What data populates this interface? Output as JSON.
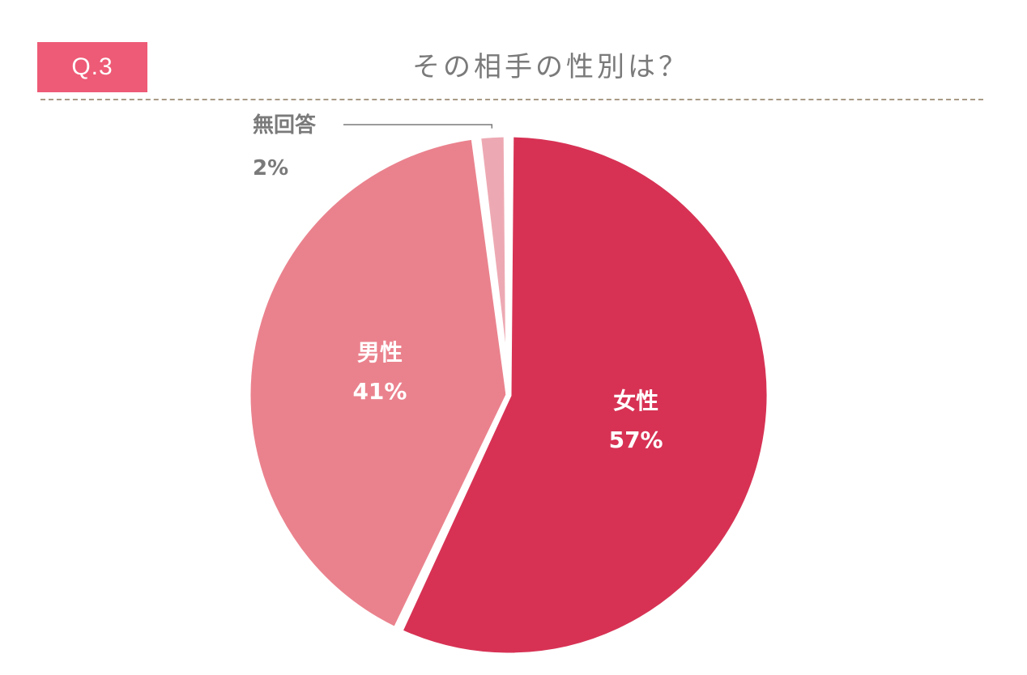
{
  "header": {
    "badge": "Q.3",
    "title": "その相手の性別は？"
  },
  "colors": {
    "badge_bg": "#ee5b76",
    "female": "#d73254",
    "male": "#ea828d",
    "no_answer": "#eda9b3",
    "title_text": "#7a7a7a",
    "divider": "#a99a86"
  },
  "chart_data": {
    "type": "pie",
    "start_angle_deg": 0,
    "direction": "clockwise",
    "slices": [
      {
        "label": "女性",
        "value": 57,
        "display": "57%",
        "color": "#d73254",
        "label_position": "inside"
      },
      {
        "label": "男性",
        "value": 41,
        "display": "41%",
        "color": "#ea828d",
        "label_position": "inside"
      },
      {
        "label": "無回答",
        "value": 2,
        "display": "2%",
        "color": "#eda9b3",
        "label_position": "outside-top-left"
      }
    ]
  }
}
